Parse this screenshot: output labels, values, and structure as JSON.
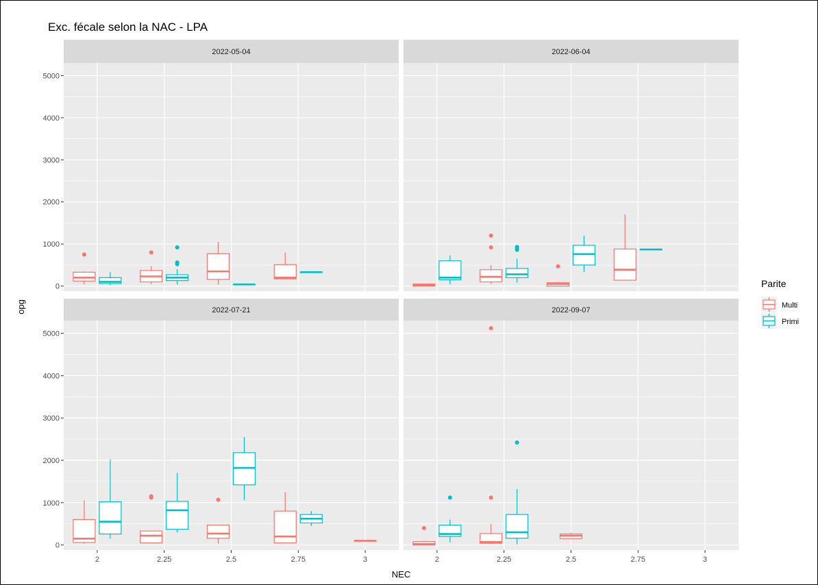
{
  "chart_data": {
    "type": "boxplot",
    "title": "Exc. fécale selon la NAC - LPA",
    "xlabel": "NEC",
    "ylabel": "opg",
    "categories": [
      "2",
      "2.25",
      "2.5",
      "2.75",
      "3"
    ],
    "yticks": [
      0,
      1000,
      2000,
      3000,
      4000,
      5000
    ],
    "ylim": [
      -120,
      5300
    ],
    "grid": true,
    "legend": {
      "title": "Parite",
      "position": "right",
      "entries": [
        {
          "name": "Multi",
          "color": "#F8766D"
        },
        {
          "name": "Primi",
          "color": "#00BFC4"
        }
      ]
    },
    "facets": [
      {
        "label": "2022-05-04",
        "boxes": [
          {
            "series": "Multi",
            "x": "2",
            "min": 40,
            "q1": 120,
            "median": 200,
            "q3": 330,
            "max": 350,
            "outliers": [
              750
            ]
          },
          {
            "series": "Primi",
            "x": "2",
            "min": 20,
            "q1": 60,
            "median": 100,
            "q3": 200,
            "max": 330,
            "outliers": []
          },
          {
            "series": "Multi",
            "x": "2.25",
            "min": 50,
            "q1": 100,
            "median": 230,
            "q3": 370,
            "max": 470,
            "outliers": [
              800
            ]
          },
          {
            "series": "Primi",
            "x": "2.25",
            "min": 40,
            "q1": 130,
            "median": 200,
            "q3": 270,
            "max": 400,
            "outliers": [
              520,
              560,
              920
            ]
          },
          {
            "series": "Multi",
            "x": "2.5",
            "min": 40,
            "q1": 160,
            "median": 350,
            "q3": 770,
            "max": 1050,
            "outliers": []
          },
          {
            "series": "Primi",
            "x": "2.5",
            "min": 40,
            "q1": 40,
            "median": 40,
            "q3": 40,
            "max": 40,
            "outliers": []
          },
          {
            "series": "Multi",
            "x": "2.75",
            "min": 160,
            "q1": 170,
            "median": 200,
            "q3": 510,
            "max": 800,
            "outliers": []
          },
          {
            "series": "Primi",
            "x": "2.75",
            "min": 330,
            "q1": 330,
            "median": 330,
            "q3": 330,
            "max": 330,
            "outliers": []
          }
        ]
      },
      {
        "label": "2022-06-04",
        "boxes": [
          {
            "series": "Multi",
            "x": "2",
            "min": 0,
            "q1": 0,
            "median": 30,
            "q3": 50,
            "max": 50,
            "outliers": []
          },
          {
            "series": "Primi",
            "x": "2",
            "min": 40,
            "q1": 150,
            "median": 200,
            "q3": 600,
            "max": 730,
            "outliers": []
          },
          {
            "series": "Multi",
            "x": "2.25",
            "min": 50,
            "q1": 100,
            "median": 220,
            "q3": 390,
            "max": 500,
            "outliers": [
              920,
              1200
            ]
          },
          {
            "series": "Primi",
            "x": "2.25",
            "min": 80,
            "q1": 200,
            "median": 280,
            "q3": 420,
            "max": 650,
            "outliers": [
              860,
              900,
              930
            ]
          },
          {
            "series": "Multi",
            "x": "2.5",
            "min": 0,
            "q1": 0,
            "median": 50,
            "q3": 80,
            "max": 100,
            "outliers": [
              470
            ]
          },
          {
            "series": "Primi",
            "x": "2.5",
            "min": 330,
            "q1": 500,
            "median": 760,
            "q3": 970,
            "max": 1200,
            "outliers": []
          },
          {
            "series": "Multi",
            "x": "2.75",
            "min": 130,
            "q1": 140,
            "median": 390,
            "q3": 880,
            "max": 1700,
            "outliers": []
          },
          {
            "series": "Primi",
            "x": "2.75",
            "min": 870,
            "q1": 870,
            "median": 870,
            "q3": 870,
            "max": 870,
            "outliers": []
          }
        ]
      },
      {
        "label": "2022-07-21",
        "boxes": [
          {
            "series": "Multi",
            "x": "2",
            "min": 30,
            "q1": 60,
            "median": 150,
            "q3": 600,
            "max": 1050,
            "outliers": []
          },
          {
            "series": "Primi",
            "x": "2",
            "min": 150,
            "q1": 260,
            "median": 550,
            "q3": 1020,
            "max": 2020,
            "outliers": []
          },
          {
            "series": "Multi",
            "x": "2.25",
            "min": 40,
            "q1": 50,
            "median": 220,
            "q3": 330,
            "max": 340,
            "outliers": [
              1120,
              1150
            ]
          },
          {
            "series": "Primi",
            "x": "2.25",
            "min": 300,
            "q1": 370,
            "median": 820,
            "q3": 1030,
            "max": 1700,
            "outliers": []
          },
          {
            "series": "Multi",
            "x": "2.5",
            "min": 40,
            "q1": 160,
            "median": 270,
            "q3": 470,
            "max": 480,
            "outliers": [
              1070
            ]
          },
          {
            "series": "Primi",
            "x": "2.5",
            "min": 1060,
            "q1": 1420,
            "median": 1820,
            "q3": 2180,
            "max": 2550,
            "outliers": []
          },
          {
            "series": "Multi",
            "x": "2.75",
            "min": 40,
            "q1": 50,
            "median": 200,
            "q3": 800,
            "max": 1250,
            "outliers": []
          },
          {
            "series": "Primi",
            "x": "2.75",
            "min": 450,
            "q1": 520,
            "median": 620,
            "q3": 720,
            "max": 800,
            "outliers": []
          },
          {
            "series": "Multi",
            "x": "3",
            "min": 100,
            "q1": 100,
            "median": 100,
            "q3": 100,
            "max": 100,
            "outliers": []
          }
        ]
      },
      {
        "label": "2022-09-07",
        "boxes": [
          {
            "series": "Multi",
            "x": "2",
            "min": 0,
            "q1": 0,
            "median": 20,
            "q3": 80,
            "max": 100,
            "outliers": [
              400
            ]
          },
          {
            "series": "Primi",
            "x": "2",
            "min": 60,
            "q1": 200,
            "median": 260,
            "q3": 470,
            "max": 600,
            "outliers": [
              1120
            ]
          },
          {
            "series": "Multi",
            "x": "2.25",
            "min": 20,
            "q1": 40,
            "median": 70,
            "q3": 270,
            "max": 500,
            "outliers": [
              1120,
              5120
            ]
          },
          {
            "series": "Primi",
            "x": "2.25",
            "min": 20,
            "q1": 160,
            "median": 300,
            "q3": 720,
            "max": 1320,
            "outliers": [
              2420
            ]
          },
          {
            "series": "Multi",
            "x": "2.5",
            "min": 150,
            "q1": 150,
            "median": 220,
            "q3": 260,
            "max": 290,
            "outliers": []
          }
        ]
      }
    ]
  }
}
